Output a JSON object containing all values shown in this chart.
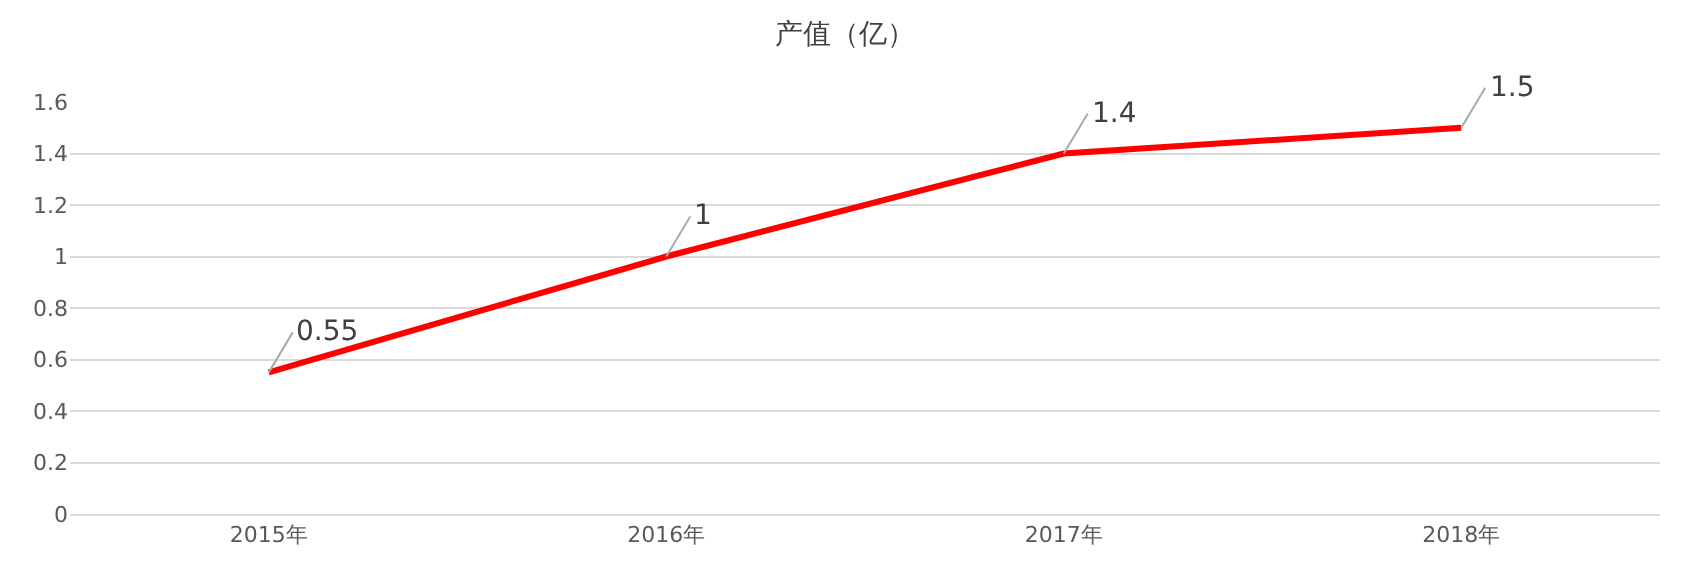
{
  "chart_data": {
    "type": "line",
    "title": "产值（亿）",
    "categories": [
      "2015年",
      "2016年",
      "2017年",
      "2018年"
    ],
    "series": [
      {
        "color": "#ff0000",
        "values": [
          0.55,
          1,
          1.4,
          1.5
        ]
      }
    ],
    "ylim": [
      0,
      1.6
    ],
    "yticks": [
      0,
      0.2,
      0.4,
      0.6,
      0.8,
      1,
      1.2,
      1.4,
      1.6
    ],
    "grid": "y",
    "marker": "none",
    "line_style": "solid",
    "data_labels": true
  }
}
